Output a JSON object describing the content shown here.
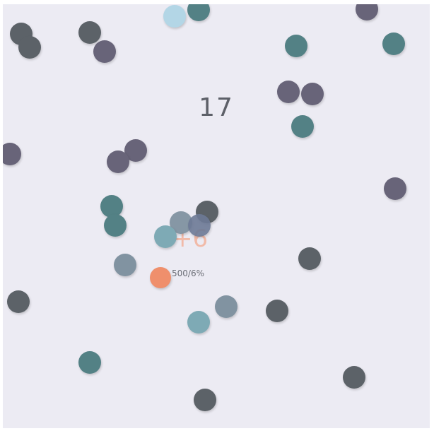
{
  "game": {
    "score": "17",
    "bonus_popup": "+6",
    "player_stat": "500/6%"
  },
  "colors": {
    "background": "#ecebf3",
    "player": "#ef8f6c",
    "slate": "#5c6268",
    "purple": "#686479",
    "teal": "#538185",
    "steel": "#8193a1",
    "aqua": "#7eaab5",
    "light_blue": "#b3d6e6"
  }
}
